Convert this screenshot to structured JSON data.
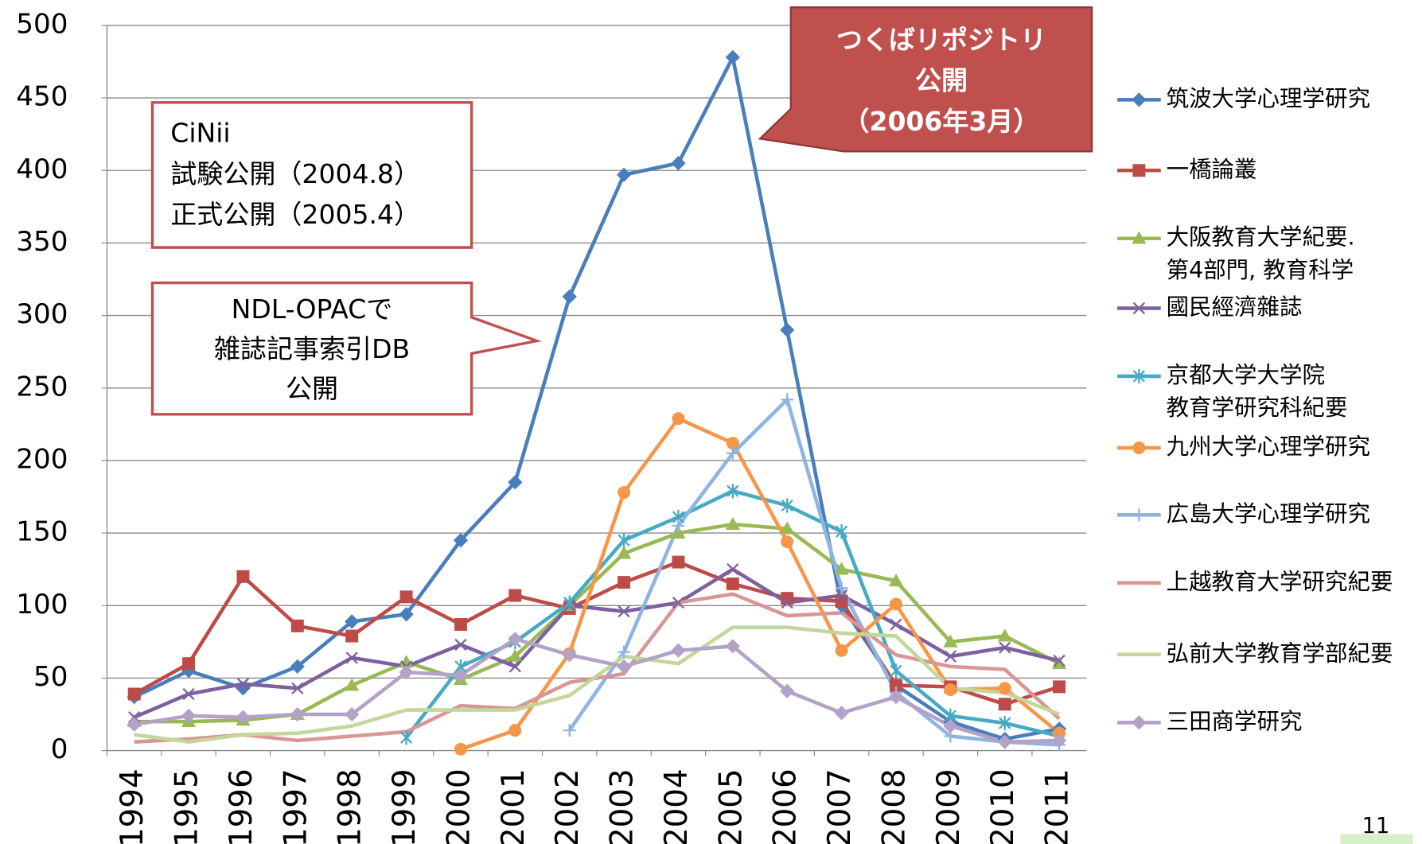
{
  "chart_data": {
    "type": "line",
    "x": [
      1994,
      1995,
      1996,
      1997,
      1998,
      1999,
      2000,
      2001,
      2002,
      2003,
      2004,
      2005,
      2006,
      2007,
      2008,
      2009,
      2010,
      2011
    ],
    "ylim": [
      0,
      500
    ],
    "yticks": [
      0,
      50,
      100,
      150,
      200,
      250,
      300,
      350,
      400,
      450,
      500
    ],
    "grid": true,
    "legend": "right",
    "series": [
      {
        "name": "筑波大学心理学研究",
        "color": "#4a7ebb",
        "marker": "diamond",
        "values": [
          37,
          55,
          43,
          58,
          89,
          94,
          145,
          185,
          313,
          397,
          405,
          478,
          290,
          100,
          45,
          20,
          8,
          15
        ]
      },
      {
        "name": "一橋論叢",
        "color": "#be4b48",
        "marker": "square",
        "values": [
          39,
          60,
          120,
          86,
          79,
          106,
          87,
          107,
          98,
          116,
          130,
          115,
          105,
          103,
          45,
          44,
          32,
          44
        ]
      },
      {
        "name": "大阪教育大学紀要.\n第4部門, 教育科学",
        "color": "#98b954",
        "marker": "triangle",
        "values": [
          20,
          20,
          21,
          25,
          45,
          61,
          49,
          65,
          100,
          136,
          150,
          156,
          153,
          125,
          117,
          75,
          79,
          60
        ]
      },
      {
        "name": "國民經濟雜誌",
        "color": "#7d60a0",
        "marker": "x",
        "values": [
          23,
          39,
          46,
          43,
          64,
          58,
          73,
          58,
          100,
          96,
          102,
          125,
          102,
          107,
          87,
          65,
          71,
          62
        ]
      },
      {
        "name": "京都大学大学院\n教育学研究科紀要",
        "color": "#46aac4",
        "marker": "star",
        "values": [
          null,
          null,
          null,
          null,
          null,
          9,
          58,
          75,
          102,
          145,
          161,
          179,
          169,
          151,
          55,
          24,
          19,
          10
        ]
      },
      {
        "name": "九州大学心理学研究",
        "color": "#f79646",
        "marker": "circle",
        "values": [
          null,
          null,
          null,
          null,
          null,
          null,
          1,
          14,
          67,
          178,
          229,
          212,
          144,
          69,
          101,
          42,
          43,
          12
        ]
      },
      {
        "name": "広島大学心理学研究",
        "color": "#8eb4e3",
        "marker": "plus",
        "values": [
          null,
          null,
          null,
          null,
          null,
          null,
          null,
          null,
          14,
          68,
          155,
          205,
          242,
          112,
          40,
          10,
          6,
          4
        ]
      },
      {
        "name": "上越教育大学研究紀要",
        "color": "#d99694",
        "marker": "none",
        "values": [
          6,
          8,
          11,
          7,
          10,
          13,
          31,
          29,
          47,
          53,
          102,
          108,
          93,
          95,
          66,
          58,
          56,
          22
        ]
      },
      {
        "name": "弘前大学教育学部紀要",
        "color": "#c3d69b",
        "marker": "none",
        "values": [
          11,
          6,
          11,
          12,
          17,
          28,
          28,
          28,
          38,
          65,
          60,
          85,
          85,
          81,
          79,
          43,
          40,
          25
        ]
      },
      {
        "name": "三田商学研究",
        "color": "#b3a2c7",
        "marker": "diamond",
        "values": [
          18,
          24,
          23,
          25,
          25,
          54,
          52,
          77,
          66,
          58,
          69,
          72,
          41,
          26,
          37,
          17,
          6,
          7
        ]
      }
    ],
    "annotations": [
      "CiNii\n試験公開（2004.8）\n正式公開（2005.4）",
      "NDL-OPACで\n雑誌記事索引DB\n公開",
      "つくばリポジトリ\n公開\n（2006年3月）"
    ],
    "page_number": "11"
  }
}
